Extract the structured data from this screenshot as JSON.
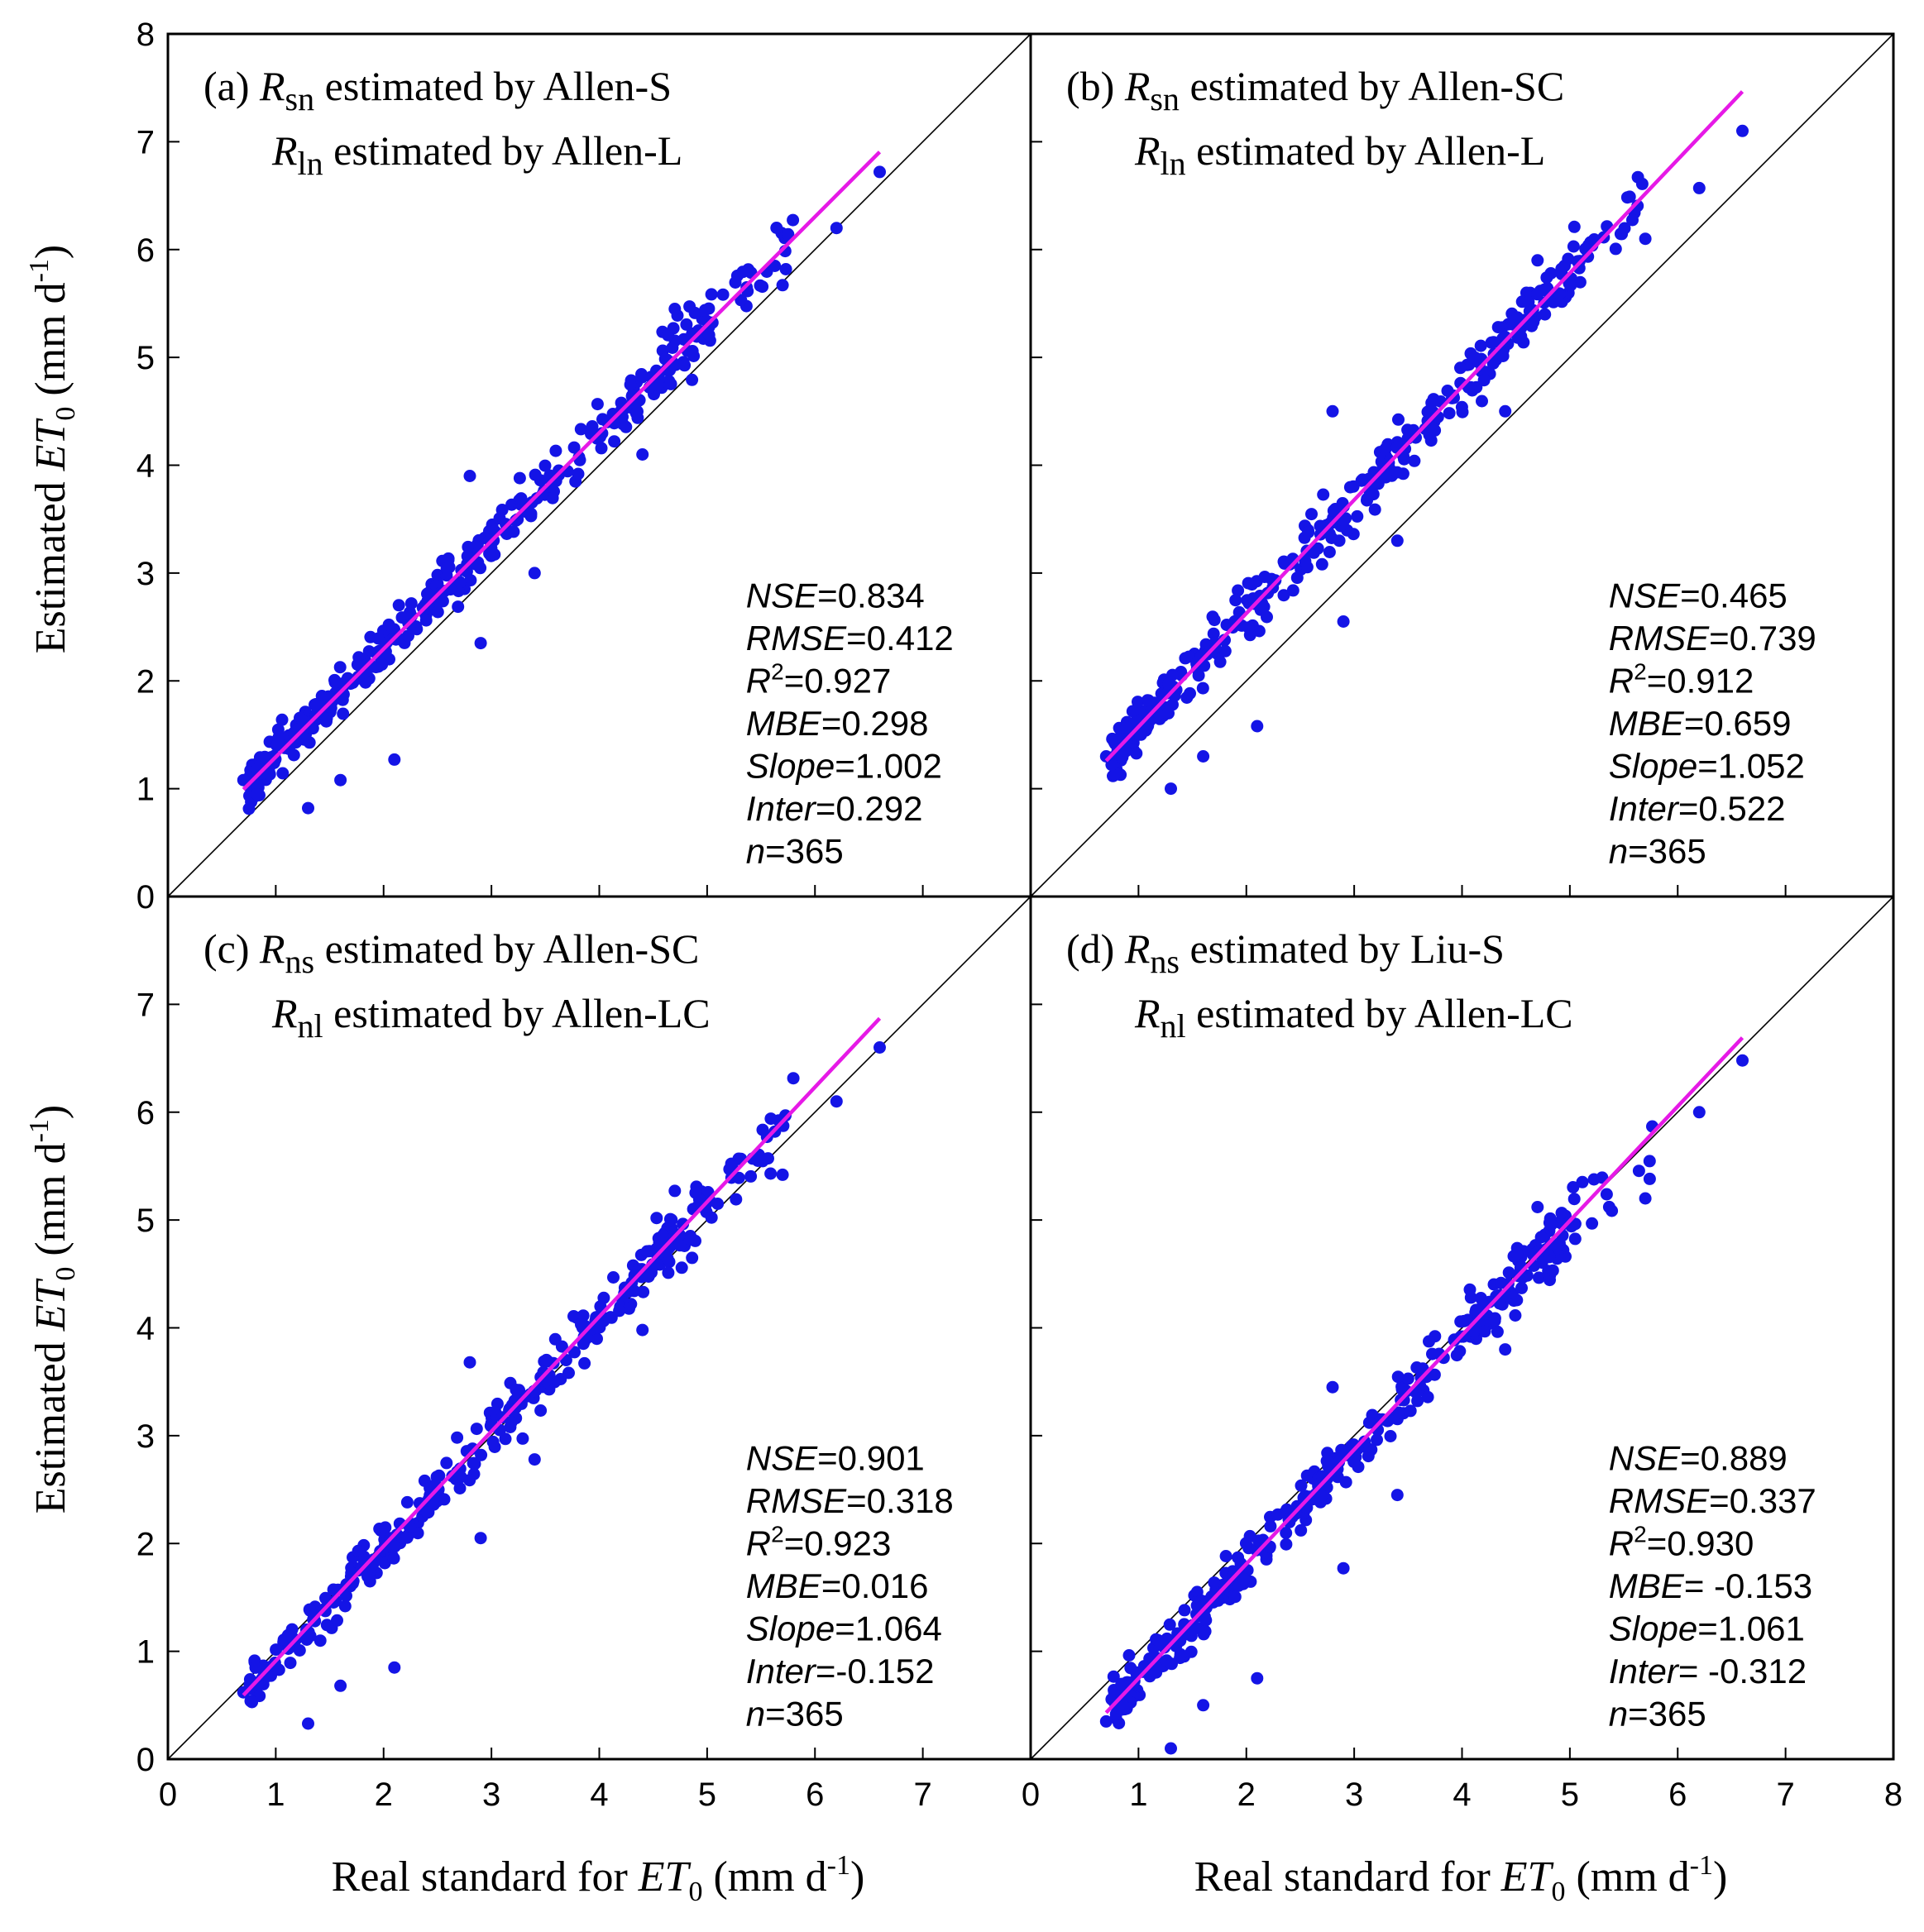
{
  "figure": {
    "y_axis_title": {
      "prefix": "Estimated ",
      "var": "ET",
      "sub": "0",
      "unit_open": " (mm d",
      "sup": "-1",
      "unit_close": ")"
    },
    "x_axis_title": {
      "prefix": "Real standard for ",
      "var": "ET",
      "sub": "0",
      "unit_open": " (mm d",
      "sup": "-1",
      "unit_close": ")"
    },
    "colors": {
      "points": "#1414e6",
      "fit_line": "#e619e6",
      "one_to_one": "#000000",
      "frame": "#000000"
    }
  },
  "chart_data": [
    {
      "type": "scatter",
      "id": "a",
      "title_lines": [
        {
          "label": "(a) ",
          "sym": "R",
          "sub": "sn",
          "rest": " estimated by Allen-S"
        },
        {
          "label": "",
          "sym": "R",
          "sub": "ln",
          "rest": " estimated by Allen-L"
        }
      ],
      "stats": [
        {
          "key": "NSE",
          "sup": "",
          "val": "=0.834"
        },
        {
          "key": "RMSE",
          "sup": "",
          "val": "=0.412"
        },
        {
          "key": "R",
          "sup": "2",
          "val": "=0.927"
        },
        {
          "key": "MBE",
          "sup": "",
          "val": "=0.298"
        },
        {
          "key": "Slope",
          "sup": "",
          "val": "=1.002"
        },
        {
          "key": "Inter",
          "sup": "",
          "val": "=0.292"
        },
        {
          "key": "n",
          "sup": "",
          "val": "=365"
        }
      ],
      "slope": 1.002,
      "intercept": 0.292,
      "fit_x_range": [
        0.7,
        6.6
      ],
      "xlim": [
        0,
        8
      ],
      "ylim": [
        0,
        8
      ],
      "noise": 0.23,
      "seed": 11,
      "outliers": [
        [
          0.7,
          1.08
        ],
        [
          1.3,
          0.82
        ],
        [
          2.1,
          1.27
        ],
        [
          3.4,
          3.0
        ],
        [
          4.4,
          4.1
        ],
        [
          5.7,
          5.67
        ],
        [
          6.6,
          6.72
        ],
        [
          6.2,
          6.2
        ],
        [
          4.7,
          5.45
        ],
        [
          2.8,
          3.9
        ],
        [
          1.6,
          1.08
        ],
        [
          2.9,
          2.35
        ]
      ],
      "xticks": [],
      "yticks": [
        0,
        1,
        2,
        3,
        4,
        5,
        6,
        7,
        8
      ]
    },
    {
      "type": "scatter",
      "id": "b",
      "title_lines": [
        {
          "label": "(b) ",
          "sym": "R",
          "sub": "sn",
          "rest": " estimated by Allen-SC"
        },
        {
          "label": "",
          "sym": "R",
          "sub": "ln",
          "rest": " estimated by Allen-L"
        }
      ],
      "stats": [
        {
          "key": "NSE",
          "sup": "",
          "val": "=0.465"
        },
        {
          "key": "RMSE",
          "sup": "",
          "val": "=0.739"
        },
        {
          "key": "R",
          "sup": "2",
          "val": "=0.912"
        },
        {
          "key": "MBE",
          "sup": "",
          "val": "=0.659"
        },
        {
          "key": "Slope",
          "sup": "",
          "val": "=1.052"
        },
        {
          "key": "Inter",
          "sup": "",
          "val": "=0.522"
        },
        {
          "key": "n",
          "sup": "",
          "val": "=365"
        }
      ],
      "slope": 1.052,
      "intercept": 0.522,
      "fit_x_range": [
        0.7,
        6.6
      ],
      "xlim": [
        0,
        8
      ],
      "ylim": [
        0,
        8
      ],
      "noise": 0.25,
      "seed": 23,
      "outliers": [
        [
          0.7,
          1.3
        ],
        [
          1.3,
          1.0
        ],
        [
          2.1,
          1.58
        ],
        [
          3.4,
          3.3
        ],
        [
          4.4,
          4.5
        ],
        [
          5.7,
          6.1
        ],
        [
          6.6,
          7.1
        ],
        [
          6.2,
          6.57
        ],
        [
          4.7,
          5.9
        ],
        [
          2.8,
          4.5
        ],
        [
          1.6,
          1.3
        ],
        [
          2.9,
          2.55
        ]
      ],
      "xticks": [],
      "yticks": []
    },
    {
      "type": "scatter",
      "id": "c",
      "title_lines": [
        {
          "label": "(c) ",
          "sym": "R",
          "sub": "ns",
          "rest": " estimated by Allen-SC"
        },
        {
          "label": "",
          "sym": "R",
          "sub": "nl",
          "rest": " estimated by Allen-LC"
        }
      ],
      "stats": [
        {
          "key": "NSE",
          "sup": "",
          "val": "=0.901"
        },
        {
          "key": "RMSE",
          "sup": "",
          "val": "=0.318"
        },
        {
          "key": "R",
          "sup": "2",
          "val": "=0.923"
        },
        {
          "key": "MBE",
          "sup": "",
          "val": "=0.016"
        },
        {
          "key": "Slope",
          "sup": "",
          "val": "=1.064"
        },
        {
          "key": "Inter",
          "sup": "",
          "val": "=-0.152"
        },
        {
          "key": "n",
          "sup": "",
          "val": "=365"
        }
      ],
      "slope": 1.064,
      "intercept": -0.152,
      "fit_x_range": [
        0.7,
        6.6
      ],
      "xlim": [
        0,
        8
      ],
      "ylim": [
        0,
        8
      ],
      "noise": 0.24,
      "seed": 37,
      "outliers": [
        [
          0.7,
          0.62
        ],
        [
          1.3,
          0.33
        ],
        [
          2.1,
          0.85
        ],
        [
          3.4,
          2.78
        ],
        [
          4.4,
          3.98
        ],
        [
          5.7,
          5.42
        ],
        [
          6.6,
          6.6
        ],
        [
          6.2,
          6.1
        ],
        [
          4.7,
          5.27
        ],
        [
          2.8,
          3.68
        ],
        [
          1.6,
          0.68
        ],
        [
          2.9,
          2.05
        ]
      ],
      "xticks": [
        0,
        1,
        2,
        3,
        4,
        5,
        6,
        7
      ],
      "yticks": [
        0,
        1,
        2,
        3,
        4,
        5,
        6,
        7
      ]
    },
    {
      "type": "scatter",
      "id": "d",
      "title_lines": [
        {
          "label": "(d) ",
          "sym": "R",
          "sub": "ns",
          "rest": " estimated by Liu-S"
        },
        {
          "label": "",
          "sym": "R",
          "sub": "nl",
          "rest": " estimated by Allen-LC"
        }
      ],
      "stats": [
        {
          "key": "NSE",
          "sup": "",
          "val": "=0.889"
        },
        {
          "key": "RMSE",
          "sup": "",
          "val": "=0.337"
        },
        {
          "key": "R",
          "sup": "2",
          "val": "=0.930"
        },
        {
          "key": "MBE",
          "sup": "",
          "val": "= -0.153"
        },
        {
          "key": "Slope",
          "sup": "",
          "val": "=1.061"
        },
        {
          "key": "Inter",
          "sup": "",
          "val": "= -0.312"
        },
        {
          "key": "n",
          "sup": "",
          "val": "=365"
        }
      ],
      "slope": 1.061,
      "intercept": -0.312,
      "fit_x_range": [
        0.7,
        6.6
      ],
      "xlim": [
        0,
        8
      ],
      "ylim": [
        0,
        8
      ],
      "noise": 0.25,
      "seed": 53,
      "outliers": [
        [
          0.7,
          0.35
        ],
        [
          1.3,
          0.1
        ],
        [
          2.1,
          0.75
        ],
        [
          3.4,
          2.45
        ],
        [
          4.4,
          3.8
        ],
        [
          5.7,
          5.2
        ],
        [
          6.6,
          6.48
        ],
        [
          6.2,
          6.0
        ],
        [
          4.7,
          5.12
        ],
        [
          2.8,
          3.45
        ],
        [
          1.6,
          0.5
        ],
        [
          2.9,
          1.77
        ]
      ],
      "xticks": [
        0,
        1,
        2,
        3,
        4,
        5,
        6,
        7,
        8
      ],
      "yticks": []
    }
  ]
}
